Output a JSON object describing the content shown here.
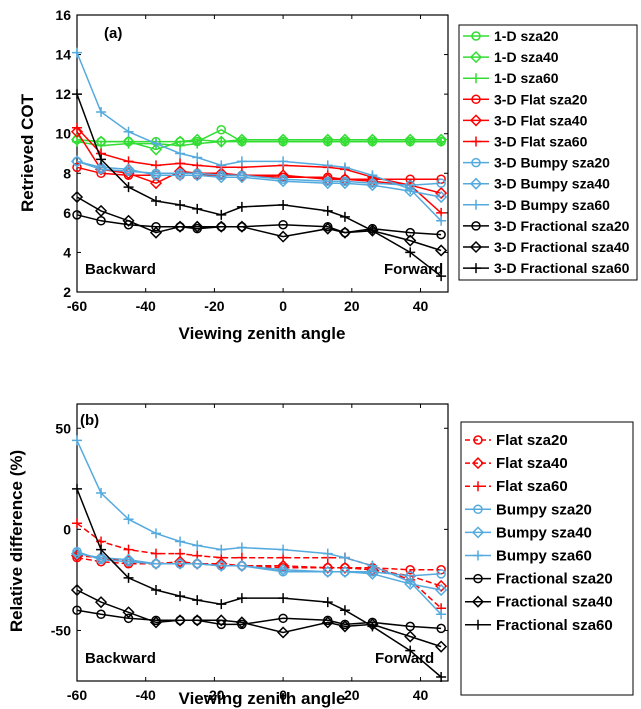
{
  "chart_data": [
    {
      "type": "line",
      "title": "(a)",
      "xlabel": "Viewing zenith angle",
      "ylabel": "Retrieved COT",
      "xlim": [
        -60,
        48
      ],
      "ylim": [
        2,
        16
      ],
      "xticks": [
        -60,
        -40,
        -20,
        0,
        20,
        40
      ],
      "yticks": [
        2,
        4,
        6,
        8,
        10,
        12,
        14,
        16
      ],
      "grid": false,
      "legend_position": "outside-right",
      "annotations": {
        "left": "Backward",
        "right": "Forward"
      },
      "x": [
        -60,
        -53,
        -45,
        -37,
        -30,
        -25,
        -18,
        -12,
        0,
        13,
        18,
        26,
        37,
        46
      ],
      "series": [
        {
          "name": "1-D sza20",
          "color": "#33dd33",
          "marker": "circle",
          "style": "solid",
          "values": [
            9.7,
            9.6,
            9.6,
            9.6,
            9.6,
            9.6,
            10.2,
            9.6,
            9.6,
            9.6,
            9.6,
            9.6,
            9.6,
            9.6
          ]
        },
        {
          "name": "1-D sza40",
          "color": "#33dd33",
          "marker": "diamond",
          "style": "solid",
          "values": [
            9.7,
            9.6,
            9.6,
            9.2,
            9.6,
            9.7,
            9.6,
            9.7,
            9.7,
            9.7,
            9.7,
            9.7,
            9.7,
            9.7
          ]
        },
        {
          "name": "1-D sza60",
          "color": "#33dd33",
          "marker": "plus",
          "style": "solid",
          "values": [
            9.6,
            9.4,
            9.5,
            9.5,
            9.4,
            9.5,
            9.6,
            9.6,
            9.6,
            9.6,
            9.6,
            9.6,
            9.6,
            9.6
          ]
        },
        {
          "name": "3-D Flat sza20",
          "color": "#ff0000",
          "marker": "circle",
          "style": "solid",
          "values": [
            8.3,
            8.0,
            7.9,
            7.9,
            7.9,
            7.9,
            7.9,
            7.9,
            7.8,
            7.8,
            7.7,
            7.7,
            7.7,
            7.7
          ]
        },
        {
          "name": "3-D Flat sza40",
          "color": "#ff0000",
          "marker": "diamond",
          "style": "solid",
          "values": [
            10.1,
            8.2,
            8.0,
            7.5,
            8.1,
            8.0,
            8.0,
            7.9,
            7.9,
            7.7,
            7.7,
            7.6,
            7.4,
            7.0
          ]
        },
        {
          "name": "3-D Flat sza60",
          "color": "#ff0000",
          "marker": "plus",
          "style": "solid",
          "values": [
            10.3,
            9.0,
            8.6,
            8.4,
            8.5,
            8.4,
            8.3,
            8.3,
            8.4,
            8.3,
            8.2,
            7.8,
            7.4,
            6.0
          ]
        },
        {
          "name": "3-D Bumpy sza20",
          "color": "#55aadd",
          "marker": "circle",
          "style": "solid",
          "values": [
            8.6,
            8.2,
            8.1,
            8.0,
            8.0,
            8.0,
            7.9,
            7.9,
            7.7,
            7.6,
            7.6,
            7.5,
            7.4,
            7.5
          ]
        },
        {
          "name": "3-D Bumpy sza40",
          "color": "#55aadd",
          "marker": "diamond",
          "style": "solid",
          "values": [
            8.6,
            8.3,
            8.2,
            7.9,
            7.9,
            7.9,
            7.8,
            7.8,
            7.6,
            7.5,
            7.5,
            7.4,
            7.1,
            6.8
          ]
        },
        {
          "name": "3-D Bumpy sza60",
          "color": "#55aadd",
          "marker": "plus",
          "style": "solid",
          "values": [
            14.1,
            11.1,
            10.1,
            9.5,
            9.0,
            8.8,
            8.4,
            8.6,
            8.6,
            8.4,
            8.3,
            7.9,
            7.2,
            5.6
          ]
        },
        {
          "name": "3-D Fractional sza20",
          "color": "#000000",
          "marker": "circle",
          "style": "solid",
          "values": [
            5.9,
            5.6,
            5.4,
            5.3,
            5.3,
            5.2,
            5.3,
            5.3,
            5.4,
            5.3,
            5.0,
            5.2,
            5.0,
            4.9
          ]
        },
        {
          "name": "3-D Fractional sza40",
          "color": "#000000",
          "marker": "diamond",
          "style": "solid",
          "values": [
            6.8,
            6.1,
            5.6,
            5.0,
            5.3,
            5.3,
            5.3,
            5.3,
            4.8,
            5.2,
            5.0,
            5.1,
            4.6,
            4.1
          ]
        },
        {
          "name": "3-D Fractional sza60",
          "color": "#000000",
          "marker": "plus",
          "style": "solid",
          "values": [
            12.0,
            8.7,
            7.3,
            6.6,
            6.4,
            6.2,
            5.9,
            6.3,
            6.4,
            6.1,
            5.8,
            5.1,
            4.0,
            2.8
          ]
        }
      ]
    },
    {
      "type": "line",
      "title": "(b)",
      "xlabel": "Viewing zenith angle",
      "ylabel": "Relative difference (%)",
      "xlim": [
        -60,
        48
      ],
      "ylim": [
        -75,
        62
      ],
      "xticks": [
        -60,
        -40,
        -20,
        0,
        20,
        40
      ],
      "yticks": [
        -50,
        0,
        50
      ],
      "grid": false,
      "legend_position": "outside-right",
      "annotations": {
        "left": "Backward",
        "right": "Forward"
      },
      "x": [
        -60,
        -53,
        -45,
        -37,
        -30,
        -25,
        -18,
        -12,
        0,
        13,
        18,
        26,
        37,
        46
      ],
      "series": [
        {
          "name": "Flat sza20",
          "color": "#ff0000",
          "marker": "circle",
          "style": "dashed",
          "values": [
            -14,
            -16,
            -17,
            -17,
            -17,
            -17,
            -18,
            -18,
            -19,
            -19,
            -19,
            -19,
            -20,
            -20
          ]
        },
        {
          "name": "Flat sza40",
          "color": "#ff0000",
          "marker": "diamond",
          "style": "dashed",
          "values": [
            -13,
            -14,
            -16,
            -17,
            -16,
            -17,
            -17,
            -18,
            -18,
            -19,
            -19,
            -20,
            -23,
            -28
          ]
        },
        {
          "name": "Flat sza60",
          "color": "#ff0000",
          "marker": "plus",
          "style": "dashed",
          "values": [
            3,
            -6,
            -10,
            -12,
            -12,
            -13,
            -14,
            -14,
            -14,
            -14,
            -14,
            -18,
            -25,
            -39
          ]
        },
        {
          "name": "Bumpy sza20",
          "color": "#55aadd",
          "marker": "circle",
          "style": "solid",
          "values": [
            -11,
            -15,
            -16,
            -17,
            -17,
            -17,
            -18,
            -18,
            -21,
            -21,
            -21,
            -21,
            -23,
            -22
          ]
        },
        {
          "name": "Bumpy sza40",
          "color": "#55aadd",
          "marker": "diamond",
          "style": "solid",
          "values": [
            -12,
            -14,
            -15,
            -17,
            -17,
            -17,
            -18,
            -18,
            -20,
            -21,
            -21,
            -22,
            -27,
            -30
          ]
        },
        {
          "name": "Bumpy sza60",
          "color": "#55aadd",
          "marker": "plus",
          "style": "solid",
          "values": [
            44,
            18,
            5,
            -2,
            -6,
            -8,
            -10,
            -9,
            -10,
            -12,
            -14,
            -18,
            -26,
            -42
          ]
        },
        {
          "name": "Fractional sza20",
          "color": "#000000",
          "marker": "circle",
          "style": "solid",
          "values": [
            -40,
            -42,
            -44,
            -45,
            -45,
            -45,
            -47,
            -47,
            -44,
            -45,
            -47,
            -46,
            -48,
            -49
          ]
        },
        {
          "name": "Fractional sza40",
          "color": "#000000",
          "marker": "diamond",
          "style": "solid",
          "values": [
            -30,
            -36,
            -41,
            -46,
            -45,
            -45,
            -45,
            -46,
            -51,
            -46,
            -48,
            -47,
            -53,
            -58
          ]
        },
        {
          "name": "Fractional sza60",
          "color": "#000000",
          "marker": "plus",
          "style": "solid",
          "values": [
            20,
            -10,
            -24,
            -30,
            -33,
            -35,
            -37,
            -34,
            -34,
            -36,
            -40,
            -48,
            -60,
            -73
          ]
        }
      ]
    }
  ]
}
